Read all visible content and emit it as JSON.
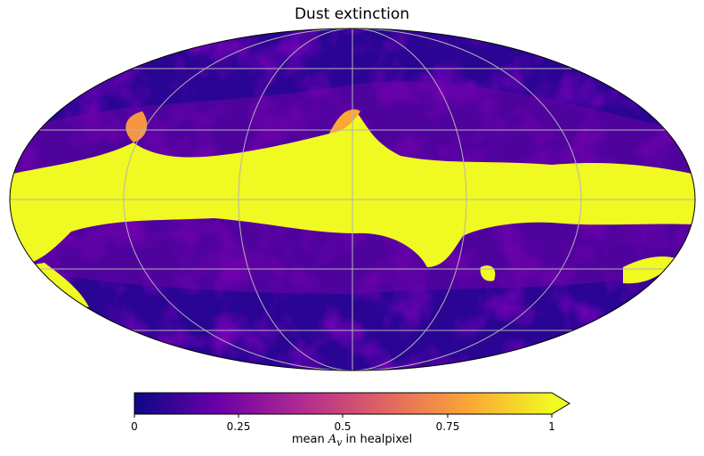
{
  "title": "Dust extinction",
  "map": {
    "projection": "mollweide",
    "quantity": "mean A_v per healpixel",
    "graticule": {
      "meridians_deg": [
        -120,
        -60,
        0,
        60,
        120
      ],
      "parallels_deg": [
        -60,
        -30,
        0,
        30,
        60
      ]
    },
    "colormap": "plasma",
    "saturated_band": "galactic plane (yellow, > 1)"
  },
  "colorbar": {
    "ticks": [
      "0",
      "0.25",
      "0.5",
      "0.75",
      "1"
    ],
    "label_prefix": "mean ",
    "label_symbol": "A",
    "label_sub": "v",
    "label_suffix": " in healpixel",
    "extend": "max",
    "range": [
      0,
      1
    ],
    "colors": [
      "#0d0887",
      "#6a00a8",
      "#b12a90",
      "#e16462",
      "#fca636",
      "#f0f921"
    ]
  }
}
